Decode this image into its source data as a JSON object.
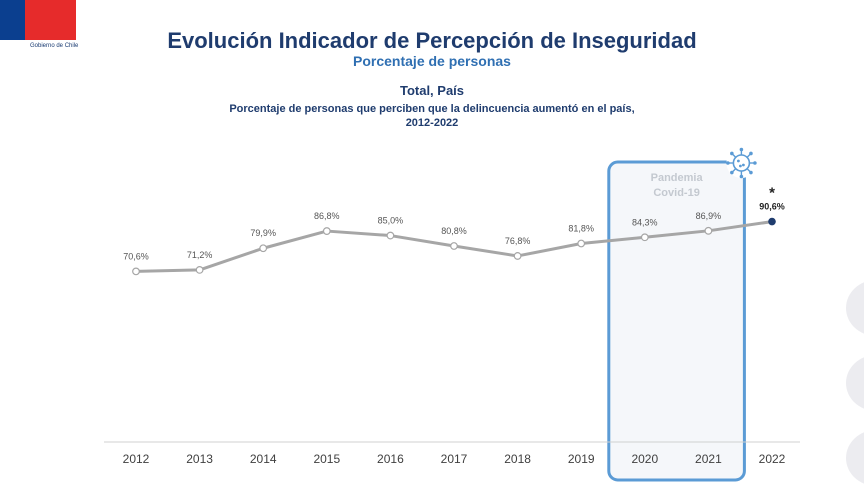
{
  "header": {
    "logo_text": "Gobierno de Chile",
    "title": "Evolución Indicador de Percepción de Inseguridad",
    "subtitle": "Porcentaje de personas",
    "heading": "Total, País",
    "description_line1": "Porcentaje de personas que perciben que la delincuencia aumentó en el país,",
    "description_line2": "2012-2022"
  },
  "colors": {
    "brand_blue": "#0b3f8f",
    "brand_red": "#e62b2b",
    "title": "#1f3c6e",
    "subtitle": "#2f6fb2",
    "line": "#a6a6a6",
    "highlight_box": "#5b9bd5",
    "last_point": "#1f3c6e"
  },
  "chart_data": {
    "type": "line",
    "categories": [
      "2012",
      "2013",
      "2014",
      "2015",
      "2016",
      "2017",
      "2018",
      "2019",
      "2020",
      "2021",
      "2022"
    ],
    "series": [
      {
        "values": [
          70.6,
          71.2,
          79.9,
          86.8,
          85.0,
          80.8,
          76.8,
          81.8,
          84.3,
          86.9,
          90.6
        ],
        "labels": [
          "70,6%",
          "71,2%",
          "79,9%",
          "86,8%",
          "85,0%",
          "80,8%",
          "76,8%",
          "81,8%",
          "84,3%",
          "86,9%",
          "90,6%"
        ]
      }
    ],
    "ylim": [
      0,
      100
    ],
    "grid": false,
    "highlight": {
      "label_line1": "Pandemia",
      "label_line2": "Covid-19",
      "from": "2020",
      "to": "2021",
      "icon": "virus-icon"
    },
    "marker": {
      "category": "2022",
      "symbol": "*"
    }
  }
}
